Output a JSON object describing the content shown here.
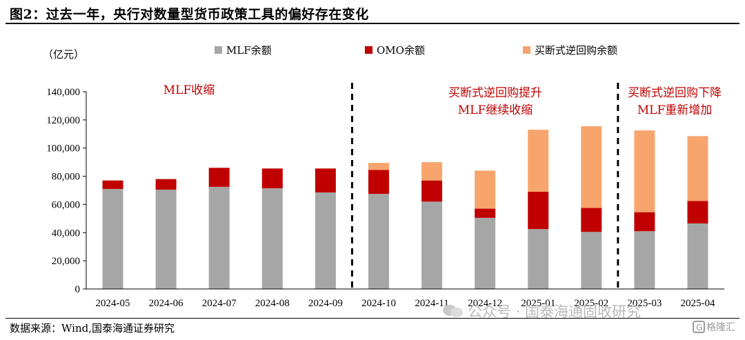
{
  "header": {
    "title": "图2：过去一年，央行对数量型货币政策工具的偏好存在变化"
  },
  "footer": {
    "source": "数据来源：Wind,国泰海通证券研究"
  },
  "watermark": {
    "text": "公众号 · 国泰海通固收研究",
    "logo_text": "格隆汇"
  },
  "colors": {
    "mlf": "#a6a6a6",
    "omo": "#c00000",
    "outright": "#f7a56d",
    "annotation": "#c00000"
  },
  "chart_data": {
    "type": "bar",
    "stacked": true,
    "unit_label": "（亿元）",
    "categories": [
      "2024-05",
      "2024-06",
      "2024-07",
      "2024-08",
      "2024-09",
      "2024-10",
      "2024-11",
      "2024-12",
      "2025-01",
      "2025-02",
      "2025-03",
      "2025-04"
    ],
    "series": [
      {
        "name": "MLF余额",
        "values": [
          71000,
          70500,
          72500,
          71500,
          68500,
          67500,
          62000,
          50500,
          42500,
          40500,
          41000,
          46500
        ]
      },
      {
        "name": "OMO余额",
        "values": [
          6000,
          7500,
          13500,
          14000,
          17000,
          17000,
          15000,
          6500,
          26500,
          17000,
          13500,
          16000
        ]
      },
      {
        "name": "买断式逆回购余额",
        "values": [
          0,
          0,
          0,
          0,
          0,
          5000,
          13000,
          27000,
          44000,
          58000,
          58000,
          46000
        ]
      }
    ],
    "ylim": [
      0,
      140000
    ],
    "yticks": [
      "0",
      "20,000",
      "40,000",
      "60,000",
      "80,000",
      "100,000",
      "120,000",
      "140,000"
    ],
    "ytick_values": [
      0,
      20000,
      40000,
      60000,
      80000,
      100000,
      120000,
      140000
    ],
    "legend_position": "top",
    "grid": false,
    "annotations": [
      {
        "lines": [
          "MLF收缩"
        ]
      },
      {
        "lines": [
          "买断式逆回购提升",
          "MLF继续收缩"
        ]
      },
      {
        "lines": [
          "买断式逆回购下降",
          "MLF重新增加"
        ]
      }
    ],
    "dividers_after_category_index": [
      4,
      9
    ]
  }
}
